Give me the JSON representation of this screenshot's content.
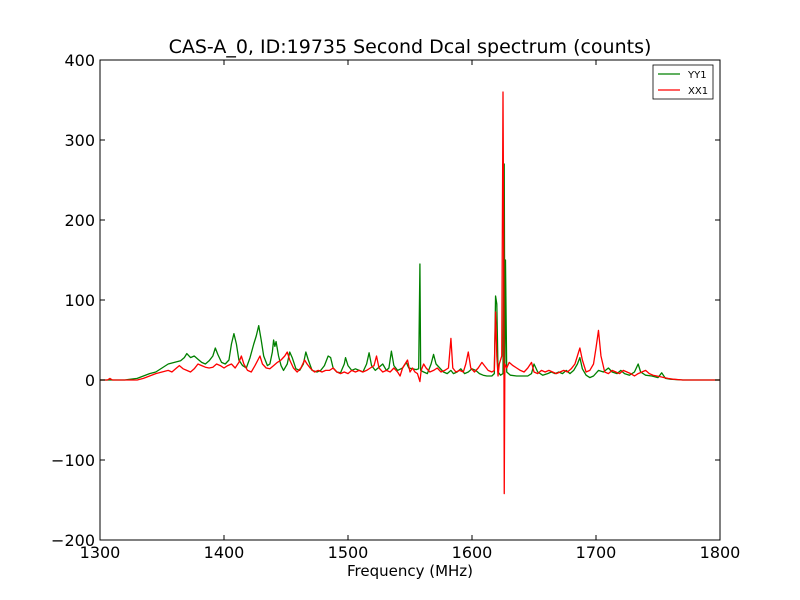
{
  "chart_data": {
    "type": "line",
    "title": "CAS-A_0, ID:19735 Second Dcal spectrum (counts)",
    "xlabel": "Frequency (MHz)",
    "ylabel": "",
    "xlim": [
      1300,
      1800
    ],
    "ylim": [
      -200,
      400
    ],
    "xticks": [
      1300,
      1400,
      1500,
      1600,
      1700,
      1800
    ],
    "yticks": [
      -200,
      -100,
      0,
      100,
      200,
      300,
      400
    ],
    "grid": false,
    "legend_position": "top-right",
    "series": [
      {
        "name": "YY1",
        "color": "#008000",
        "points": [
          [
            1300,
            0
          ],
          [
            1310,
            0
          ],
          [
            1320,
            0
          ],
          [
            1330,
            2
          ],
          [
            1335,
            5
          ],
          [
            1340,
            8
          ],
          [
            1345,
            10
          ],
          [
            1350,
            15
          ],
          [
            1355,
            20
          ],
          [
            1360,
            22
          ],
          [
            1365,
            24
          ],
          [
            1368,
            28
          ],
          [
            1370,
            33
          ],
          [
            1373,
            28
          ],
          [
            1376,
            30
          ],
          [
            1379,
            26
          ],
          [
            1382,
            22
          ],
          [
            1385,
            20
          ],
          [
            1388,
            24
          ],
          [
            1391,
            30
          ],
          [
            1393,
            40
          ],
          [
            1395,
            32
          ],
          [
            1398,
            22
          ],
          [
            1401,
            20
          ],
          [
            1404,
            25
          ],
          [
            1406,
            45
          ],
          [
            1408,
            58
          ],
          [
            1410,
            45
          ],
          [
            1412,
            25
          ],
          [
            1415,
            18
          ],
          [
            1418,
            15
          ],
          [
            1421,
            28
          ],
          [
            1424,
            45
          ],
          [
            1426,
            55
          ],
          [
            1428,
            68
          ],
          [
            1430,
            50
          ],
          [
            1432,
            30
          ],
          [
            1435,
            18
          ],
          [
            1437,
            20
          ],
          [
            1439,
            35
          ],
          [
            1440,
            50
          ],
          [
            1441,
            42
          ],
          [
            1442,
            48
          ],
          [
            1444,
            30
          ],
          [
            1446,
            18
          ],
          [
            1448,
            12
          ],
          [
            1451,
            20
          ],
          [
            1453,
            35
          ],
          [
            1455,
            28
          ],
          [
            1458,
            14
          ],
          [
            1461,
            12
          ],
          [
            1464,
            20
          ],
          [
            1466,
            35
          ],
          [
            1468,
            25
          ],
          [
            1471,
            12
          ],
          [
            1475,
            10
          ],
          [
            1478,
            12
          ],
          [
            1481,
            18
          ],
          [
            1484,
            30
          ],
          [
            1486,
            28
          ],
          [
            1488,
            15
          ],
          [
            1491,
            10
          ],
          [
            1494,
            9
          ],
          [
            1497,
            20
          ],
          [
            1498,
            28
          ],
          [
            1500,
            18
          ],
          [
            1503,
            12
          ],
          [
            1506,
            14
          ],
          [
            1509,
            12
          ],
          [
            1512,
            10
          ],
          [
            1515,
            20
          ],
          [
            1517,
            34
          ],
          [
            1519,
            18
          ],
          [
            1522,
            12
          ],
          [
            1525,
            16
          ],
          [
            1528,
            20
          ],
          [
            1531,
            12
          ],
          [
            1533,
            15
          ],
          [
            1535,
            36
          ],
          [
            1537,
            18
          ],
          [
            1540,
            12
          ],
          [
            1544,
            15
          ],
          [
            1547,
            22
          ],
          [
            1549,
            15
          ],
          [
            1552,
            14
          ],
          [
            1555,
            13
          ],
          [
            1557,
            14
          ],
          [
            1558,
            145
          ],
          [
            1558.6,
            12
          ],
          [
            1561,
            10
          ],
          [
            1564,
            8
          ],
          [
            1567,
            20
          ],
          [
            1569,
            32
          ],
          [
            1571,
            20
          ],
          [
            1574,
            15
          ],
          [
            1577,
            10
          ],
          [
            1580,
            8
          ],
          [
            1583,
            12
          ],
          [
            1585,
            8
          ],
          [
            1588,
            10
          ],
          [
            1591,
            14
          ],
          [
            1594,
            8
          ],
          [
            1597,
            10
          ],
          [
            1600,
            14
          ],
          [
            1603,
            12
          ],
          [
            1606,
            8
          ],
          [
            1609,
            6
          ],
          [
            1612,
            5
          ],
          [
            1616,
            5
          ],
          [
            1618,
            8
          ],
          [
            1619,
            105
          ],
          [
            1620,
            95
          ],
          [
            1621,
            10
          ],
          [
            1623,
            6
          ],
          [
            1625,
            8
          ],
          [
            1626,
            270
          ],
          [
            1626.5,
            10
          ],
          [
            1627,
            150
          ],
          [
            1628,
            10
          ],
          [
            1631,
            6
          ],
          [
            1636,
            5
          ],
          [
            1641,
            5
          ],
          [
            1645,
            5
          ],
          [
            1648,
            8
          ],
          [
            1650,
            20
          ],
          [
            1653,
            10
          ],
          [
            1657,
            6
          ],
          [
            1661,
            8
          ],
          [
            1664,
            10
          ],
          [
            1667,
            8
          ],
          [
            1670,
            10
          ],
          [
            1673,
            8
          ],
          [
            1676,
            12
          ],
          [
            1679,
            8
          ],
          [
            1682,
            12
          ],
          [
            1685,
            20
          ],
          [
            1687,
            28
          ],
          [
            1689,
            14
          ],
          [
            1692,
            6
          ],
          [
            1695,
            3
          ],
          [
            1698,
            5
          ],
          [
            1702,
            12
          ],
          [
            1706,
            10
          ],
          [
            1710,
            15
          ],
          [
            1713,
            10
          ],
          [
            1717,
            8
          ],
          [
            1720,
            12
          ],
          [
            1723,
            8
          ],
          [
            1727,
            6
          ],
          [
            1731,
            10
          ],
          [
            1734,
            20
          ],
          [
            1736,
            10
          ],
          [
            1740,
            6
          ],
          [
            1745,
            5
          ],
          [
            1750,
            3
          ],
          [
            1753,
            9
          ],
          [
            1756,
            2
          ],
          [
            1760,
            1
          ],
          [
            1770,
            0
          ],
          [
            1780,
            0
          ],
          [
            1800,
            0
          ]
        ]
      },
      {
        "name": "XX1",
        "color": "#ff0000",
        "points": [
          [
            1300,
            0
          ],
          [
            1306,
            0
          ],
          [
            1308,
            2
          ],
          [
            1310,
            0
          ],
          [
            1320,
            0
          ],
          [
            1330,
            0
          ],
          [
            1335,
            2
          ],
          [
            1340,
            5
          ],
          [
            1345,
            8
          ],
          [
            1350,
            10
          ],
          [
            1355,
            12
          ],
          [
            1358,
            10
          ],
          [
            1361,
            14
          ],
          [
            1364,
            18
          ],
          [
            1367,
            14
          ],
          [
            1370,
            12
          ],
          [
            1373,
            10
          ],
          [
            1376,
            14
          ],
          [
            1379,
            20
          ],
          [
            1382,
            18
          ],
          [
            1385,
            16
          ],
          [
            1388,
            15
          ],
          [
            1391,
            16
          ],
          [
            1394,
            20
          ],
          [
            1397,
            18
          ],
          [
            1400,
            15
          ],
          [
            1403,
            18
          ],
          [
            1406,
            20
          ],
          [
            1409,
            15
          ],
          [
            1412,
            22
          ],
          [
            1414,
            30
          ],
          [
            1416,
            20
          ],
          [
            1419,
            12
          ],
          [
            1422,
            10
          ],
          [
            1425,
            18
          ],
          [
            1427,
            24
          ],
          [
            1429,
            30
          ],
          [
            1431,
            20
          ],
          [
            1434,
            15
          ],
          [
            1437,
            14
          ],
          [
            1440,
            18
          ],
          [
            1443,
            22
          ],
          [
            1446,
            25
          ],
          [
            1449,
            30
          ],
          [
            1451,
            35
          ],
          [
            1453,
            25
          ],
          [
            1456,
            15
          ],
          [
            1459,
            10
          ],
          [
            1462,
            15
          ],
          [
            1465,
            25
          ],
          [
            1467,
            20
          ],
          [
            1470,
            14
          ],
          [
            1473,
            10
          ],
          [
            1476,
            12
          ],
          [
            1479,
            10
          ],
          [
            1482,
            12
          ],
          [
            1485,
            12
          ],
          [
            1488,
            15
          ],
          [
            1491,
            10
          ],
          [
            1494,
            8
          ],
          [
            1497,
            10
          ],
          [
            1500,
            8
          ],
          [
            1503,
            12
          ],
          [
            1506,
            10
          ],
          [
            1509,
            12
          ],
          [
            1512,
            10
          ],
          [
            1515,
            12
          ],
          [
            1518,
            15
          ],
          [
            1521,
            18
          ],
          [
            1523,
            30
          ],
          [
            1525,
            15
          ],
          [
            1528,
            10
          ],
          [
            1531,
            12
          ],
          [
            1534,
            10
          ],
          [
            1537,
            15
          ],
          [
            1540,
            10
          ],
          [
            1542,
            5
          ],
          [
            1544,
            15
          ],
          [
            1546,
            20
          ],
          [
            1548,
            25
          ],
          [
            1550,
            10
          ],
          [
            1552,
            15
          ],
          [
            1554,
            10
          ],
          [
            1556,
            8
          ],
          [
            1558,
            -2
          ],
          [
            1559,
            12
          ],
          [
            1561,
            20
          ],
          [
            1563,
            15
          ],
          [
            1566,
            10
          ],
          [
            1569,
            12
          ],
          [
            1572,
            15
          ],
          [
            1575,
            10
          ],
          [
            1578,
            12
          ],
          [
            1581,
            15
          ],
          [
            1583,
            52
          ],
          [
            1584.5,
            15
          ],
          [
            1587,
            10
          ],
          [
            1590,
            12
          ],
          [
            1593,
            10
          ],
          [
            1595,
            20
          ],
          [
            1597,
            35
          ],
          [
            1599,
            15
          ],
          [
            1602,
            10
          ],
          [
            1605,
            15
          ],
          [
            1608,
            22
          ],
          [
            1610,
            18
          ],
          [
            1613,
            12
          ],
          [
            1616,
            10
          ],
          [
            1618,
            12
          ],
          [
            1619,
            85
          ],
          [
            1620,
            30
          ],
          [
            1621,
            5
          ],
          [
            1622,
            20
          ],
          [
            1624,
            30
          ],
          [
            1625,
            360
          ],
          [
            1625.5,
            200
          ],
          [
            1626,
            -142
          ],
          [
            1626.5,
            20
          ],
          [
            1628,
            15
          ],
          [
            1630,
            22
          ],
          [
            1633,
            18
          ],
          [
            1636,
            15
          ],
          [
            1639,
            12
          ],
          [
            1642,
            10
          ],
          [
            1645,
            15
          ],
          [
            1648,
            22
          ],
          [
            1650,
            10
          ],
          [
            1653,
            8
          ],
          [
            1656,
            12
          ],
          [
            1659,
            10
          ],
          [
            1662,
            12
          ],
          [
            1665,
            10
          ],
          [
            1668,
            8
          ],
          [
            1671,
            10
          ],
          [
            1674,
            12
          ],
          [
            1677,
            10
          ],
          [
            1680,
            14
          ],
          [
            1683,
            20
          ],
          [
            1685,
            30
          ],
          [
            1687,
            40
          ],
          [
            1689,
            25
          ],
          [
            1692,
            10
          ],
          [
            1695,
            12
          ],
          [
            1698,
            20
          ],
          [
            1700,
            40
          ],
          [
            1702,
            62
          ],
          [
            1704,
            30
          ],
          [
            1707,
            10
          ],
          [
            1710,
            8
          ],
          [
            1713,
            12
          ],
          [
            1716,
            10
          ],
          [
            1719,
            8
          ],
          [
            1722,
            12
          ],
          [
            1725,
            10
          ],
          [
            1728,
            8
          ],
          [
            1731,
            5
          ],
          [
            1734,
            8
          ],
          [
            1737,
            10
          ],
          [
            1740,
            12
          ],
          [
            1743,
            8
          ],
          [
            1746,
            6
          ],
          [
            1749,
            5
          ],
          [
            1752,
            4
          ],
          [
            1755,
            3
          ],
          [
            1758,
            2
          ],
          [
            1762,
            1
          ],
          [
            1770,
            0
          ],
          [
            1780,
            0
          ],
          [
            1800,
            0
          ]
        ]
      }
    ]
  }
}
